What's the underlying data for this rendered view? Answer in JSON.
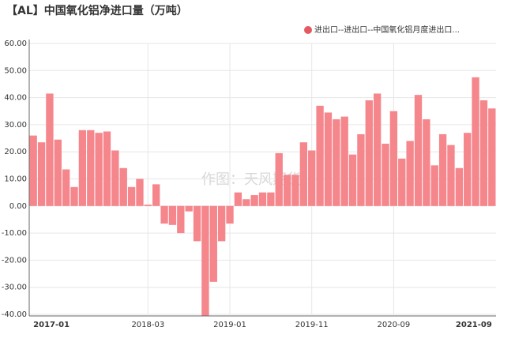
{
  "chart_data": {
    "type": "bar",
    "title": "【AL】中国氧化铝净进口量（万吨）",
    "watermark": "作图：天风期货",
    "categories": [
      "2017-01",
      null,
      null,
      null,
      null,
      null,
      null,
      null,
      null,
      null,
      null,
      null,
      null,
      null,
      "2018-03",
      null,
      null,
      null,
      null,
      null,
      null,
      null,
      null,
      null,
      "2019-01",
      null,
      null,
      null,
      null,
      null,
      null,
      null,
      null,
      null,
      "2019-11",
      null,
      null,
      null,
      null,
      null,
      null,
      null,
      null,
      null,
      "2020-09",
      null,
      null,
      null,
      null,
      null,
      null,
      null,
      null,
      null,
      null,
      null,
      "2021-09"
    ],
    "series": [
      {
        "name": "进出口--进出口--中国氧化铝月度进出口...",
        "color": "#f4868c",
        "legend_color": "#e35a61",
        "values": [
          26,
          23.5,
          41.5,
          24.5,
          13.5,
          7,
          28,
          28,
          27,
          27.5,
          20.5,
          14,
          7,
          10,
          0.5,
          8,
          -6.5,
          -7,
          -10,
          -2,
          -13,
          -41,
          -28,
          -13,
          -6.5,
          5,
          2.5,
          4,
          5,
          5,
          19.5,
          11.5,
          11.5,
          23.5,
          20.5,
          37,
          34.5,
          32,
          33,
          19,
          26.5,
          39,
          41.5,
          23,
          35,
          17.5,
          24,
          41,
          32,
          15,
          26.5,
          22.5,
          14,
          27,
          47.5,
          39,
          36
        ]
      }
    ],
    "ylim": [
      -40,
      60
    ],
    "yticks": [
      {
        "value": -40,
        "label": "-40.00"
      },
      {
        "value": -30,
        "label": "-30.00"
      },
      {
        "value": -20,
        "label": "-20.00"
      },
      {
        "value": -10,
        "label": "-10.00"
      },
      {
        "value": 0,
        "label": "0.00"
      },
      {
        "value": 10,
        "label": "10.00"
      },
      {
        "value": 20,
        "label": "20.00"
      },
      {
        "value": 30,
        "label": "30.00"
      },
      {
        "value": 40,
        "label": "40.00"
      },
      {
        "value": 50,
        "label": "50.00"
      },
      {
        "value": 60,
        "label": "60.00"
      }
    ],
    "grid": true
  }
}
